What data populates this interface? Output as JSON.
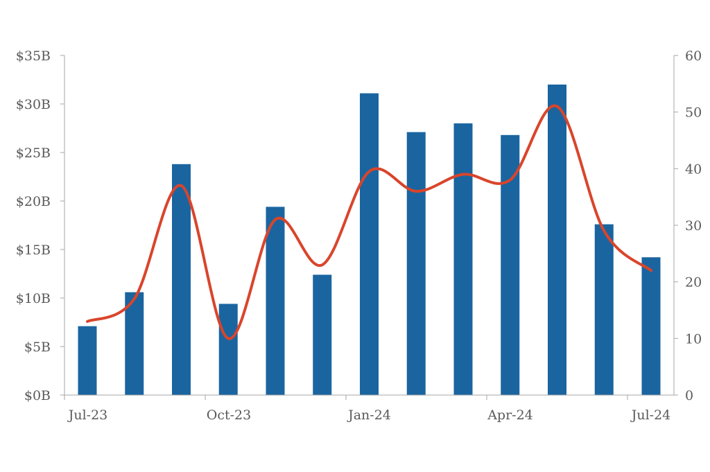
{
  "chart_data": {
    "type": "bar",
    "title": "",
    "xlabel": "",
    "ylabel": "",
    "y2label": "",
    "x_tick_labels": [
      "Jul-23",
      "Oct-23",
      "Jan-24",
      "Apr-24",
      "Jul-24"
    ],
    "categories": [
      "Jul-23",
      "Aug-23",
      "Sep-23",
      "Oct-23",
      "Nov-23",
      "Dec-23",
      "Jan-24",
      "Feb-24",
      "Mar-24",
      "Apr-24",
      "May-24",
      "Jun-24",
      "Jul-24"
    ],
    "series": [
      {
        "type": "bar",
        "axis": "left",
        "color": "#1a65a0",
        "values": [
          7.1,
          10.6,
          23.8,
          9.4,
          19.4,
          12.4,
          31.1,
          27.1,
          28.0,
          26.8,
          32.0,
          17.6,
          14.2
        ]
      },
      {
        "type": "line",
        "axis": "right",
        "smooth": true,
        "color": "#d9452b",
        "values": [
          13,
          17,
          37,
          10,
          31,
          23,
          39.5,
          36,
          39,
          38,
          51,
          29,
          22
        ]
      }
    ],
    "y_axis": {
      "ylim": [
        0,
        35
      ],
      "ticks": [
        0,
        5,
        10,
        15,
        20,
        25,
        30,
        35
      ],
      "tick_labels": [
        "$0B",
        "$5B",
        "$10B",
        "$15B",
        "$20B",
        "$25B",
        "$30B",
        "$35B"
      ]
    },
    "y2_axis": {
      "ylim": [
        0,
        60
      ],
      "ticks": [
        0,
        10,
        20,
        30,
        40,
        50,
        60
      ],
      "tick_labels": [
        "0",
        "10",
        "20",
        "30",
        "40",
        "50",
        "60"
      ]
    },
    "grid": false,
    "legend": "none"
  }
}
